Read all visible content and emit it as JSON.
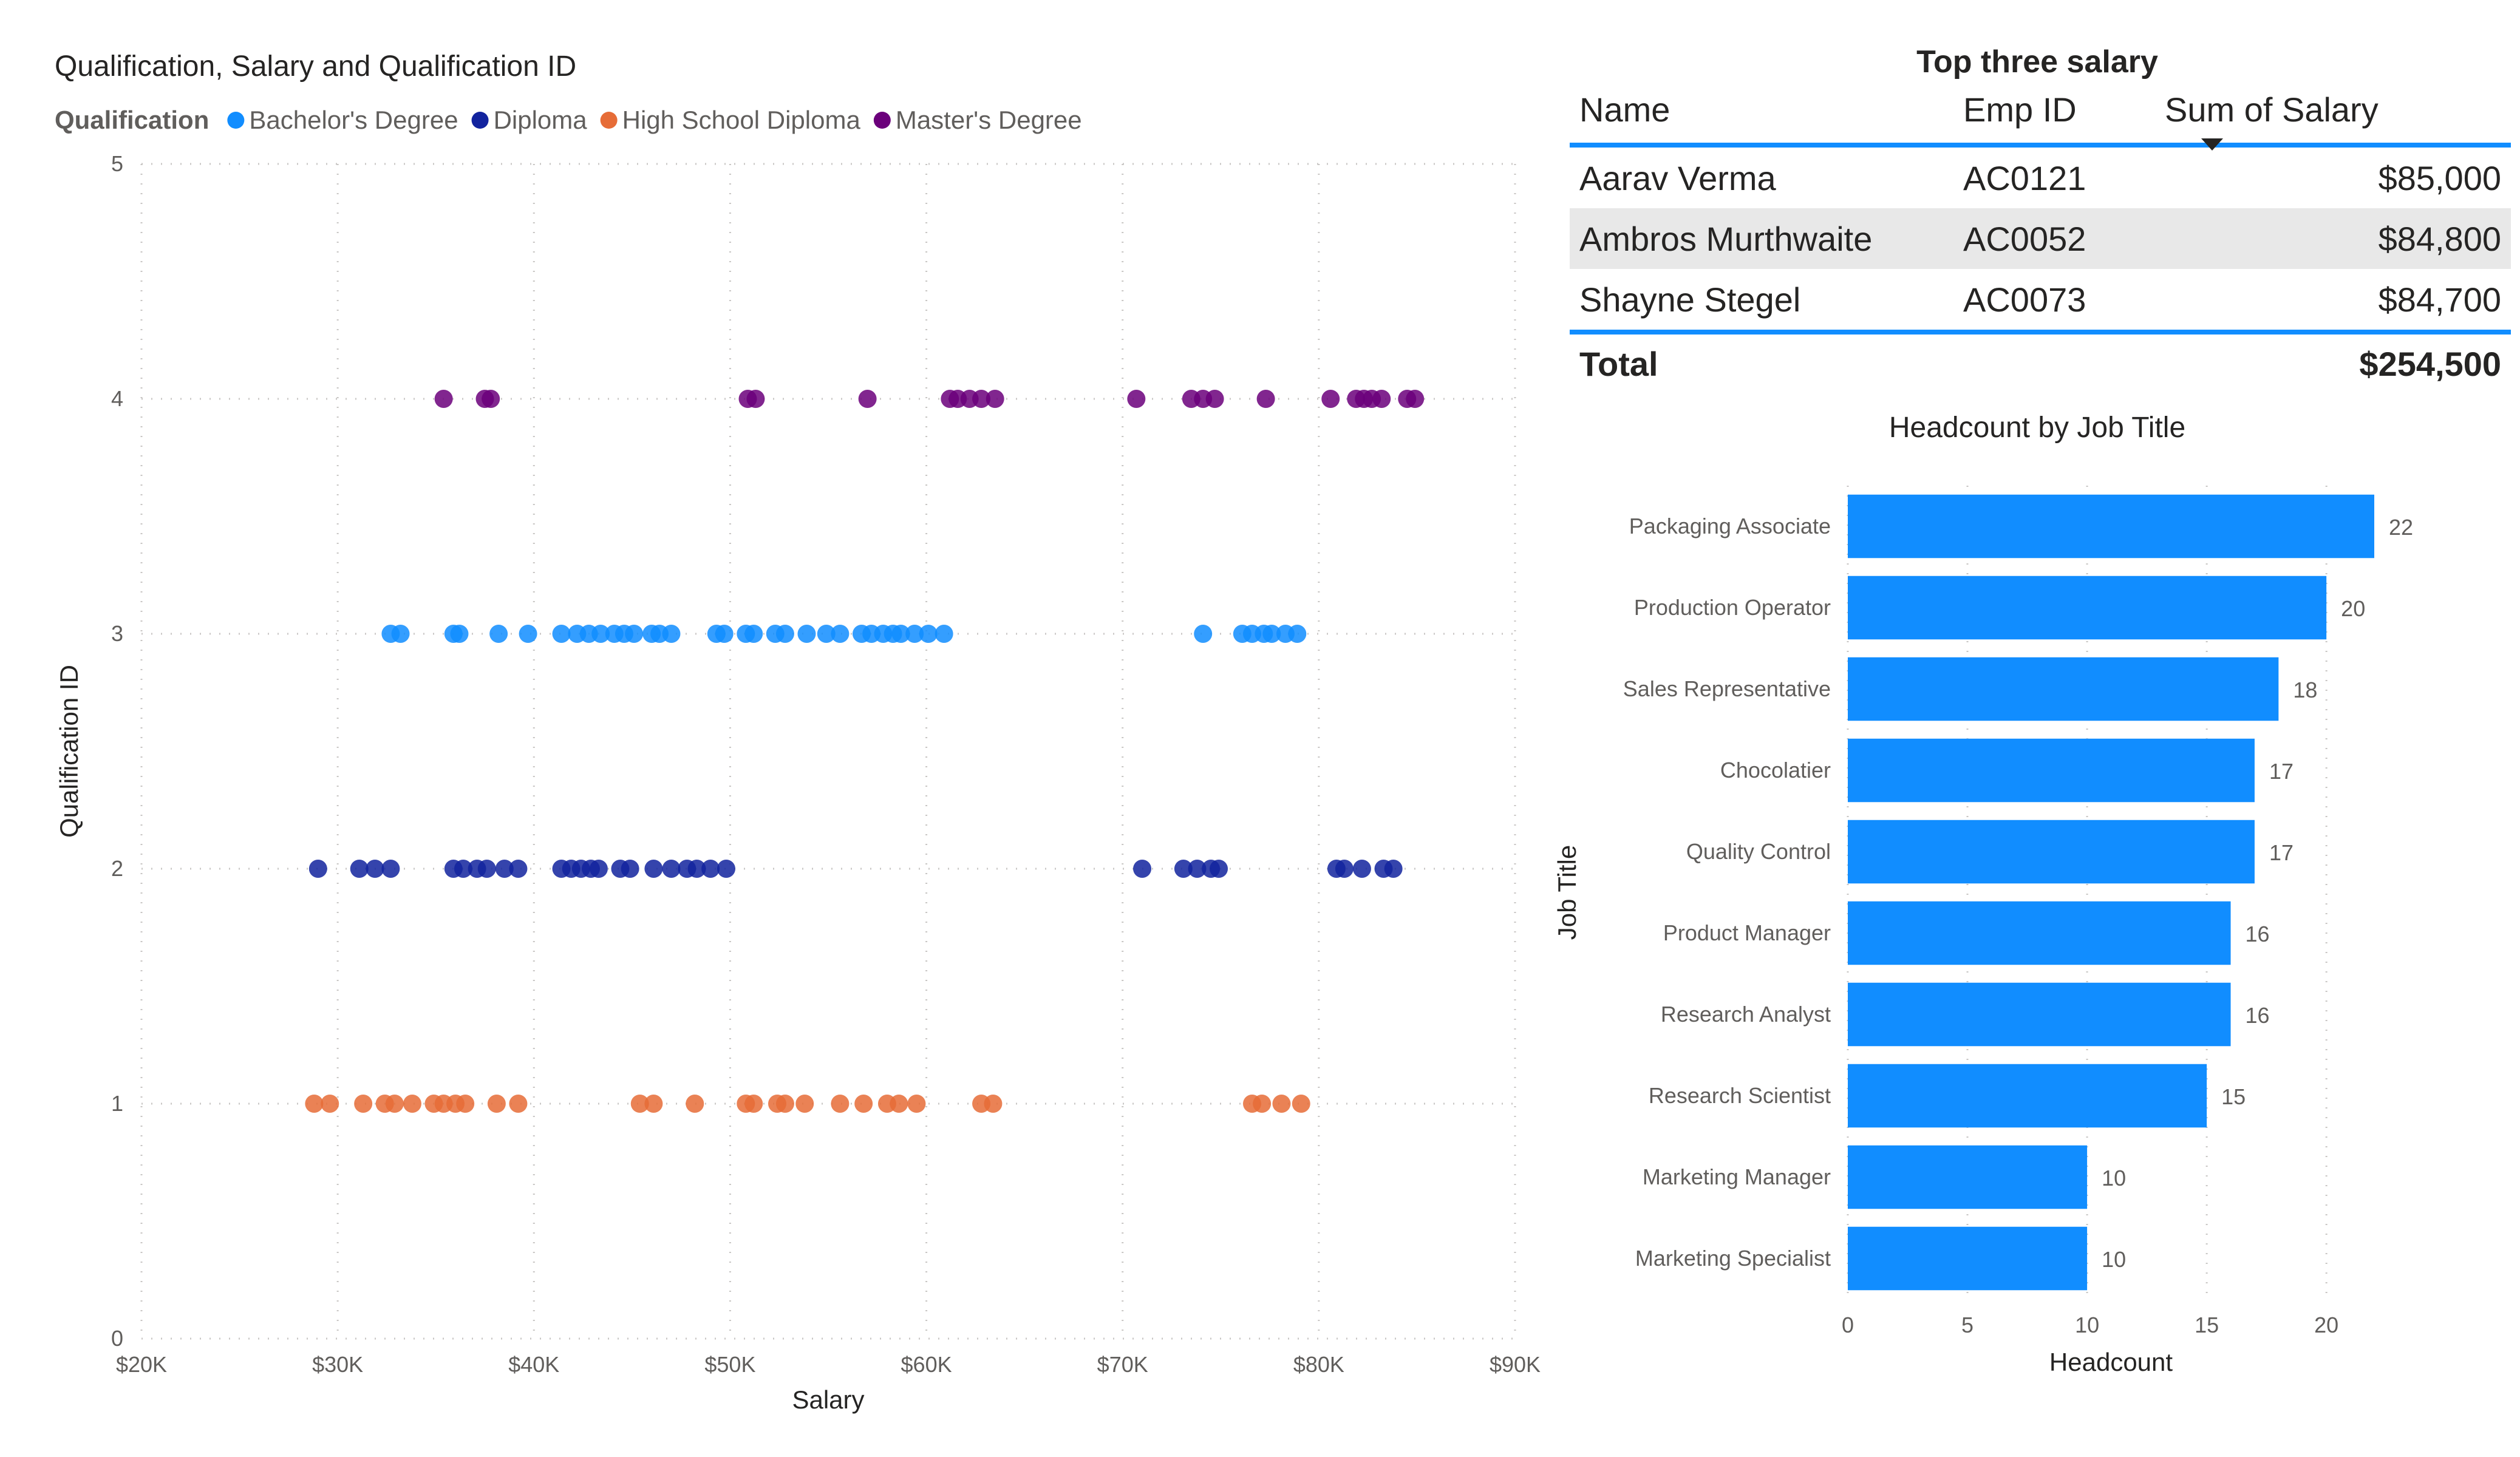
{
  "scatter": {
    "title": "Qualification, Salary and Qualification ID",
    "legend_title": "Qualification",
    "colors": {
      "Bachelor's Degree": "#118dff",
      "Diploma": "#12239e",
      "High School Diploma": "#e66c37",
      "Master's Degree": "#6b007b"
    }
  },
  "table": {
    "title": "Top three salary",
    "headers": [
      "Name",
      "Emp ID",
      "Sum of Salary"
    ],
    "rows": [
      {
        "name": "Aarav Verma",
        "emp_id": "AC0121",
        "salary": "$85,000"
      },
      {
        "name": "Ambros Murthwaite",
        "emp_id": "AC0052",
        "salary": "$84,800"
      },
      {
        "name": "Shayne Stegel",
        "emp_id": "AC0073",
        "salary": "$84,700"
      }
    ],
    "total_label": "Total",
    "total_value": "$254,500",
    "sort_icon": "sort-descending-icon",
    "accent_color": "#118dff"
  },
  "chart_data": [
    {
      "type": "scatter",
      "title": "Qualification, Salary and Qualification ID",
      "xlabel": "Salary",
      "ylabel": "Qualification ID",
      "xlim": [
        20000,
        90000
      ],
      "ylim": [
        0,
        5
      ],
      "x_ticks": [
        "$20K",
        "$30K",
        "$40K",
        "$50K",
        "$60K",
        "$70K",
        "$80K",
        "$90K"
      ],
      "y_ticks": [
        "0",
        "1",
        "2",
        "3",
        "4",
        "5"
      ],
      "legend_title": "Qualification",
      "legend_position": "top-left",
      "grid": true,
      "series": [
        {
          "name": "Bachelor's Degree",
          "color": "#118dff",
          "points": [
            [
              32700,
              3
            ],
            [
              33200,
              3
            ],
            [
              35900,
              3
            ],
            [
              36200,
              3
            ],
            [
              38200,
              3
            ],
            [
              39700,
              3
            ],
            [
              41400,
              3
            ],
            [
              42200,
              3
            ],
            [
              42800,
              3
            ],
            [
              43400,
              3
            ],
            [
              44100,
              3
            ],
            [
              44600,
              3
            ],
            [
              45100,
              3
            ],
            [
              46000,
              3
            ],
            [
              46400,
              3
            ],
            [
              47000,
              3
            ],
            [
              49300,
              3
            ],
            [
              49700,
              3
            ],
            [
              50800,
              3
            ],
            [
              51200,
              3
            ],
            [
              52300,
              3
            ],
            [
              52800,
              3
            ],
            [
              53900,
              3
            ],
            [
              54900,
              3
            ],
            [
              55600,
              3
            ],
            [
              56700,
              3
            ],
            [
              57200,
              3
            ],
            [
              57800,
              3
            ],
            [
              58300,
              3
            ],
            [
              58700,
              3
            ],
            [
              59400,
              3
            ],
            [
              60100,
              3
            ],
            [
              60900,
              3
            ],
            [
              74100,
              3
            ],
            [
              76100,
              3
            ],
            [
              76600,
              3
            ],
            [
              77200,
              3
            ],
            [
              77600,
              3
            ],
            [
              78300,
              3
            ],
            [
              78900,
              3
            ]
          ]
        },
        {
          "name": "Diploma",
          "color": "#12239e",
          "points": [
            [
              29000,
              2
            ],
            [
              31100,
              2
            ],
            [
              31900,
              2
            ],
            [
              32700,
              2
            ],
            [
              35900,
              2
            ],
            [
              36400,
              2
            ],
            [
              37100,
              2
            ],
            [
              37600,
              2
            ],
            [
              38500,
              2
            ],
            [
              39200,
              2
            ],
            [
              41400,
              2
            ],
            [
              41900,
              2
            ],
            [
              42400,
              2
            ],
            [
              42900,
              2
            ],
            [
              43300,
              2
            ],
            [
              44400,
              2
            ],
            [
              44900,
              2
            ],
            [
              46100,
              2
            ],
            [
              47000,
              2
            ],
            [
              47800,
              2
            ],
            [
              48300,
              2
            ],
            [
              49000,
              2
            ],
            [
              49800,
              2
            ],
            [
              71000,
              2
            ],
            [
              73100,
              2
            ],
            [
              73800,
              2
            ],
            [
              74500,
              2
            ],
            [
              74900,
              2
            ],
            [
              80900,
              2
            ],
            [
              81300,
              2
            ],
            [
              82200,
              2
            ],
            [
              83300,
              2
            ],
            [
              83800,
              2
            ]
          ]
        },
        {
          "name": "High School Diploma",
          "color": "#e66c37",
          "points": [
            [
              28800,
              1
            ],
            [
              29600,
              1
            ],
            [
              31300,
              1
            ],
            [
              32400,
              1
            ],
            [
              32900,
              1
            ],
            [
              33800,
              1
            ],
            [
              34900,
              1
            ],
            [
              35400,
              1
            ],
            [
              36000,
              1
            ],
            [
              36500,
              1
            ],
            [
              38100,
              1
            ],
            [
              39200,
              1
            ],
            [
              45400,
              1
            ],
            [
              46100,
              1
            ],
            [
              48200,
              1
            ],
            [
              50800,
              1
            ],
            [
              51200,
              1
            ],
            [
              52400,
              1
            ],
            [
              52800,
              1
            ],
            [
              53800,
              1
            ],
            [
              55600,
              1
            ],
            [
              56800,
              1
            ],
            [
              58000,
              1
            ],
            [
              58600,
              1
            ],
            [
              59500,
              1
            ],
            [
              62800,
              1
            ],
            [
              63400,
              1
            ],
            [
              76600,
              1
            ],
            [
              77100,
              1
            ],
            [
              78100,
              1
            ],
            [
              79100,
              1
            ]
          ]
        },
        {
          "name": "Master's Degree",
          "color": "#6b007b",
          "points": [
            [
              35400,
              4
            ],
            [
              37500,
              4
            ],
            [
              37800,
              4
            ],
            [
              50900,
              4
            ],
            [
              51300,
              4
            ],
            [
              57000,
              4
            ],
            [
              61200,
              4
            ],
            [
              61600,
              4
            ],
            [
              62200,
              4
            ],
            [
              62800,
              4
            ],
            [
              63500,
              4
            ],
            [
              70700,
              4
            ],
            [
              73500,
              4
            ],
            [
              74100,
              4
            ],
            [
              74700,
              4
            ],
            [
              77300,
              4
            ],
            [
              80600,
              4
            ],
            [
              81900,
              4
            ],
            [
              82300,
              4
            ],
            [
              82700,
              4
            ],
            [
              83200,
              4
            ],
            [
              84500,
              4
            ],
            [
              84900,
              4
            ]
          ]
        }
      ]
    },
    {
      "type": "bar",
      "orientation": "horizontal",
      "title": "Headcount by Job Title",
      "xlabel": "Headcount",
      "ylabel": "Job Title",
      "xlim": [
        0,
        22
      ],
      "x_ticks": [
        "0",
        "5",
        "10",
        "15",
        "20"
      ],
      "color": "#118dff",
      "categories": [
        "Packaging Associate",
        "Production Operator",
        "Sales Representative",
        "Chocolatier",
        "Quality Control",
        "Product Manager",
        "Research Analyst",
        "Research Scientist",
        "Marketing Manager",
        "Marketing Specialist"
      ],
      "values": [
        22,
        20,
        18,
        17,
        17,
        16,
        16,
        15,
        10,
        10
      ]
    }
  ]
}
